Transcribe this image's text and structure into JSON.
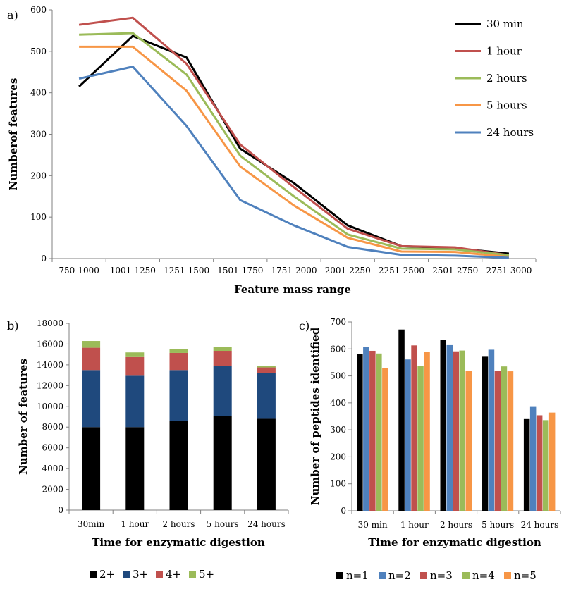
{
  "chart_data": [
    {
      "panel": "a)",
      "type": "line",
      "xlabel": "Feature mass range",
      "ylabel": "Numberof features",
      "categories": [
        "750-1000",
        "1001-1250",
        "1251-1500",
        "1501-1750",
        "1751-2000",
        "2001-2250",
        "2251-2500",
        "2501-2750",
        "2751-3000"
      ],
      "ylim": [
        0,
        600
      ],
      "yticks": [
        0,
        100,
        200,
        300,
        400,
        500,
        600
      ],
      "legend_position": "top-right",
      "series": [
        {
          "name": "30 min",
          "color": "#000000",
          "values": [
            415,
            537,
            485,
            265,
            182,
            80,
            30,
            25,
            12
          ]
        },
        {
          "name": "1 hour",
          "color": "#C0504D",
          "values": [
            564,
            581,
            470,
            275,
            172,
            72,
            30,
            27,
            8
          ]
        },
        {
          "name": "2 hours",
          "color": "#9BBB59",
          "values": [
            540,
            544,
            444,
            248,
            150,
            58,
            24,
            22,
            8
          ]
        },
        {
          "name": "5 hours",
          "color": "#F79646",
          "values": [
            511,
            511,
            405,
            222,
            128,
            50,
            17,
            16,
            4
          ]
        },
        {
          "name": "24 hours",
          "color": "#4F81BD",
          "values": [
            434,
            463,
            320,
            141,
            80,
            28,
            9,
            7,
            2
          ]
        }
      ]
    },
    {
      "panel": "b)",
      "type": "bar",
      "stacked": true,
      "xlabel": "Time for enzymatic digestion",
      "ylabel": "Number of features",
      "categories": [
        "30min",
        "1 hour",
        "2 hours",
        "5 hours",
        "24 hours"
      ],
      "ylim": [
        0,
        18000
      ],
      "yticks": [
        0,
        2000,
        4000,
        6000,
        8000,
        10000,
        12000,
        14000,
        16000,
        18000
      ],
      "legend_position": "bottom",
      "series": [
        {
          "name": "2+",
          "color": "#000000",
          "values": [
            8000,
            8000,
            8600,
            9050,
            8800
          ]
        },
        {
          "name": "3+",
          "color": "#1F497D",
          "values": [
            5500,
            4950,
            4900,
            4850,
            4400
          ]
        },
        {
          "name": "4+",
          "color": "#C0504D",
          "values": [
            2150,
            1800,
            1650,
            1450,
            550
          ]
        },
        {
          "name": "5+",
          "color": "#9BBB59",
          "values": [
            650,
            450,
            350,
            350,
            150
          ]
        }
      ]
    },
    {
      "panel": "c)",
      "type": "bar",
      "xlabel": "Time for enzymatic digestion",
      "ylabel": "Number of peptides identified",
      "categories": [
        "30 min",
        "1 hour",
        "2 hours",
        "5 hours",
        "24 hours"
      ],
      "ylim": [
        0,
        700
      ],
      "yticks": [
        0,
        100,
        200,
        300,
        400,
        500,
        600,
        700
      ],
      "legend_position": "bottom",
      "series": [
        {
          "name": "n=1",
          "color": "#000000",
          "values": [
            580,
            672,
            634,
            571,
            340
          ]
        },
        {
          "name": "n=2",
          "color": "#4F81BD",
          "values": [
            607,
            561,
            614,
            597,
            385
          ]
        },
        {
          "name": "n=3",
          "color": "#C0504D",
          "values": [
            593,
            613,
            591,
            518,
            354
          ]
        },
        {
          "name": "n=4",
          "color": "#9BBB59",
          "values": [
            583,
            537,
            594,
            535,
            336
          ]
        },
        {
          "name": "n=5",
          "color": "#F79646",
          "values": [
            528,
            590,
            519,
            517,
            364
          ]
        }
      ]
    }
  ]
}
